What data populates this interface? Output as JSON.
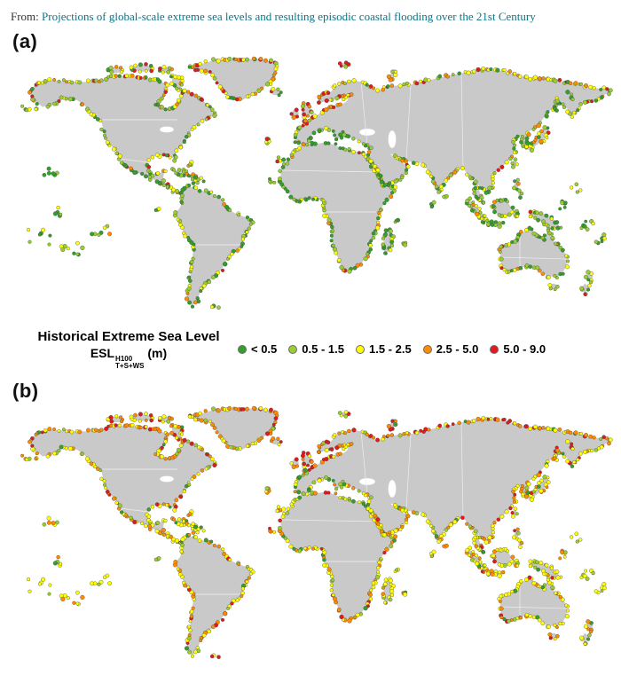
{
  "header": {
    "prefix": "From:",
    "title": "Projections of global-scale extreme sea levels and resulting episodic coastal flooding over the 21st Century"
  },
  "panels": [
    {
      "label": "(a)"
    },
    {
      "label": "(b)"
    }
  ],
  "legend": {
    "title": "Historical Extreme Sea Level",
    "symbol": "ESL",
    "superscript": "H100",
    "subscript": "T+S+WS",
    "unit": "(m)",
    "entries": [
      {
        "label": "< 0.5",
        "color": "#33a02c"
      },
      {
        "label": "0.5 - 1.5",
        "color": "#9acd32"
      },
      {
        "label": "1.5 - 2.5",
        "color": "#ffff00"
      },
      {
        "label": "2.5 - 5.0",
        "color": "#ff8c00"
      },
      {
        "label": "5.0 - 9.0",
        "color": "#e31a1c"
      }
    ]
  },
  "colors": {
    "link": "#0c7489",
    "land": "#c9c9c9",
    "land_border": "#ffffff",
    "ocean": "#ffffff",
    "dot_outline": "#3c3c3c"
  },
  "chart_data": {
    "type": "scatter",
    "subtype": "world-map-coastal-points",
    "title": "Historical Extreme Sea Level ESL H100 T+S+WS (m)",
    "units": "m",
    "legend_position": "between-panels",
    "bins": [
      "< 0.5",
      "0.5 - 1.5",
      "1.5 - 2.5",
      "2.5 - 5.0",
      "5.0 - 9.0"
    ],
    "bin_colors": [
      "#33a02c",
      "#9acd32",
      "#ffff00",
      "#ff8c00",
      "#e31a1c"
    ],
    "panels": [
      {
        "label": "(a)",
        "description": "Global coastal points colored by historical 100-yr extreme sea level (tide + surge + wave setup); low (green) values dominate, orange/red clusters in NW Europe, Alaska and high latitudes",
        "approx_share_per_bin": [
          0.3,
          0.32,
          0.23,
          0.1,
          0.05
        ]
      },
      {
        "label": "(b)",
        "description": "Same coastal points with higher extreme sea levels; yellow and orange values dominate, red along North Sea, Alaska and high-latitude coasts",
        "approx_share_per_bin": [
          0.05,
          0.11,
          0.45,
          0.28,
          0.11
        ]
      }
    ]
  }
}
